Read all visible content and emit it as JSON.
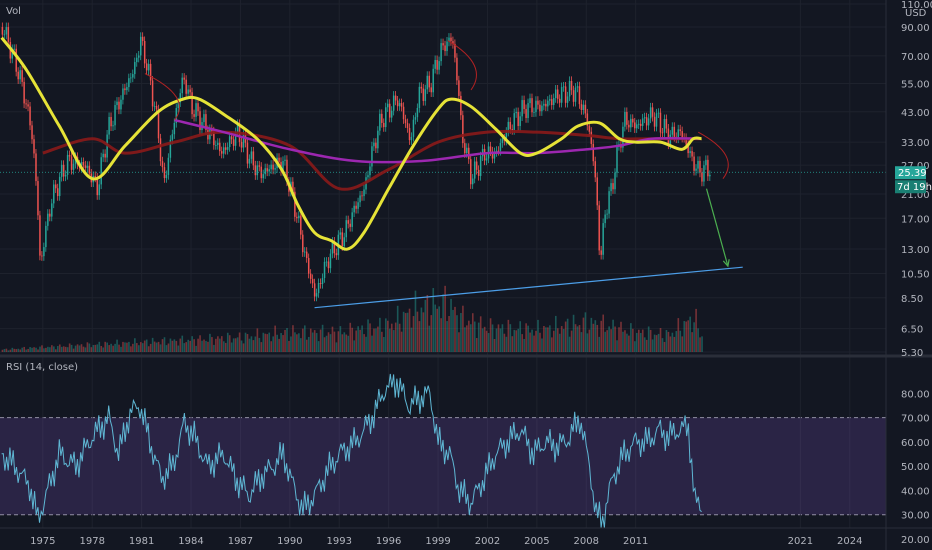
{
  "chart_data": [
    {
      "type": "line",
      "pane": "price",
      "indicator_label": "Vol",
      "currency_label": "USD",
      "ylim": [
        5.3,
        110
      ],
      "y_scale": "log",
      "y_ticks": [
        "110.00",
        "90.00",
        "70.00",
        "55.00",
        "43.00",
        "33.00",
        "27.00",
        "21.00",
        "17.00",
        "13.00",
        "10.50",
        "8.50",
        "6.50",
        "5.30"
      ],
      "x_ticks": [
        "1975",
        "1978",
        "1981",
        "1984",
        "1987",
        "1990",
        "1993",
        "1996",
        "1999",
        "2002",
        "2005",
        "2008",
        "2011",
        "2021",
        "2024"
      ],
      "last_price": "25.39",
      "countdown": "7d 19h",
      "price_x": [
        1972.5,
        1973.5,
        1974.3,
        1974.8,
        1975.5,
        1976.5,
        1977.5,
        1978.3,
        1979,
        1979.8,
        1980.5,
        1980.9,
        1981.5,
        1982.3,
        1982.8,
        1983.5,
        1984,
        1984.8,
        1985.8,
        1986.8,
        1987.6,
        1988.2,
        1989.5,
        1990.5,
        1990.9,
        1991.5,
        1992.3,
        1993.3,
        1994.5,
        1995.5,
        1996.5,
        1997.3,
        1997.8,
        1998.5,
        1999.2,
        1999.8,
        2000.4,
        2001,
        2001.8,
        2002.5,
        2003.3,
        2004.3,
        2005.3,
        2006.3,
        2007.3,
        2008,
        2008.4,
        2008.8,
        2009.1,
        2009.5,
        2010.3,
        2011,
        2012,
        2013,
        2013.7,
        2014.4,
        2014.8,
        2015.5
      ],
      "price_y": [
        90,
        60,
        35,
        11,
        20,
        28,
        27,
        22,
        38,
        50,
        62,
        80,
        55,
        22,
        35,
        58,
        45,
        38,
        30,
        36,
        28,
        25,
        28,
        16,
        12,
        8.5,
        12,
        15,
        22,
        40,
        48,
        33,
        50,
        55,
        75,
        82,
        35,
        24,
        30,
        30,
        38,
        45,
        45,
        50,
        52,
        40,
        28,
        11,
        18,
        22,
        40,
        38,
        42,
        35,
        36,
        28,
        25.5,
        26.5
      ],
      "ma_yellow_x": [
        1972.5,
        1974,
        1976,
        1978,
        1980,
        1982,
        1983.5,
        1984.5,
        1986,
        1988,
        1989.5,
        1990.5,
        1991.5,
        1992.5,
        1993.5,
        1994.5,
        1996,
        1997.5,
        1999,
        1999.8,
        2001,
        2002.5,
        2004,
        2005,
        2006.5,
        2007.5,
        2008.8,
        2010,
        2011,
        2012.5,
        2013.8,
        2014.5,
        2015
      ],
      "ma_yellow_y": [
        82,
        62,
        38,
        24,
        32,
        43,
        48,
        48,
        42,
        34,
        26,
        19,
        15,
        14,
        13,
        15,
        22,
        32,
        44,
        48,
        45,
        37,
        30,
        30,
        34,
        38,
        39,
        34,
        33,
        33,
        31,
        34,
        34
      ],
      "ma_red_x": [
        1975,
        1978,
        1980,
        1983,
        1986,
        1990,
        1993,
        1996,
        1999,
        2002,
        2005,
        2008,
        2010,
        2012,
        2015
      ],
      "ma_red_y": [
        30,
        34,
        30,
        33,
        36,
        32,
        22,
        26,
        33,
        36,
        36,
        35,
        34,
        34,
        34
      ],
      "ma_purple_x": [
        1983,
        1986,
        1990,
        1994,
        1998,
        2002,
        2005,
        2008,
        2010,
        2012,
        2015
      ],
      "ma_purple_y": [
        40,
        36,
        31,
        28,
        28,
        30,
        30,
        31,
        32,
        34,
        34
      ],
      "trendline_x": [
        1991.5,
        2017.5
      ],
      "trendline_y": [
        7.8,
        11.1
      ],
      "arrow_x": [
        2015.3,
        2016.6
      ],
      "arrow_y": [
        22,
        11.2
      ],
      "volume_x": [
        1972.5,
        1975,
        1978,
        1981,
        1984,
        1987,
        1990,
        1993,
        1996,
        1997.5,
        1998.5,
        1999.5,
        2000.3,
        2002,
        2005,
        2008,
        2009,
        2011,
        2013,
        2014.5,
        2015
      ],
      "volume_y": [
        0.05,
        0.1,
        0.15,
        0.2,
        0.25,
        0.3,
        0.4,
        0.4,
        0.55,
        0.85,
        0.95,
        1.0,
        0.7,
        0.5,
        0.45,
        0.6,
        0.55,
        0.4,
        0.35,
        0.7,
        0.3
      ]
    },
    {
      "type": "line",
      "pane": "rsi",
      "title": "RSI (14, close)",
      "ylim": [
        20,
        90
      ],
      "y_ticks": [
        "80.00",
        "70.00",
        "60.00",
        "50.00",
        "40.00",
        "30.00",
        "20.00"
      ],
      "bands": [
        30,
        70
      ],
      "x": [
        1972.5,
        1973.3,
        1974.2,
        1974.7,
        1975.3,
        1976,
        1977,
        1978,
        1979,
        1979.6,
        1980.3,
        1980.9,
        1981.5,
        1982.2,
        1982.9,
        1983.6,
        1984.2,
        1985,
        1986,
        1986.7,
        1987.5,
        1988.3,
        1989,
        1989.6,
        1990.3,
        1990.8,
        1991.5,
        1992.3,
        1993,
        1994,
        1995,
        1995.8,
        1996.5,
        1997.2,
        1997.9,
        1998.5,
        1999,
        1999.7,
        2000.3,
        2001,
        2001.8,
        2002.5,
        2003.2,
        2004,
        2004.8,
        2005.5,
        2006.3,
        2007,
        2007.6,
        2008.2,
        2008.6,
        2009,
        2009.6,
        2010.3,
        2011,
        2011.7,
        2012.4,
        2013,
        2013.6,
        2014.2,
        2014.6,
        2015
      ],
      "y": [
        55,
        50,
        42,
        28,
        40,
        55,
        50,
        62,
        70,
        55,
        72,
        75,
        60,
        45,
        50,
        68,
        62,
        50,
        55,
        45,
        38,
        46,
        50,
        55,
        40,
        32,
        38,
        48,
        55,
        60,
        70,
        82,
        85,
        75,
        78,
        80,
        60,
        55,
        40,
        35,
        45,
        55,
        60,
        65,
        55,
        60,
        58,
        62,
        70,
        50,
        30,
        28,
        45,
        55,
        60,
        60,
        65,
        62,
        65,
        66,
        35,
        34
      ]
    }
  ]
}
